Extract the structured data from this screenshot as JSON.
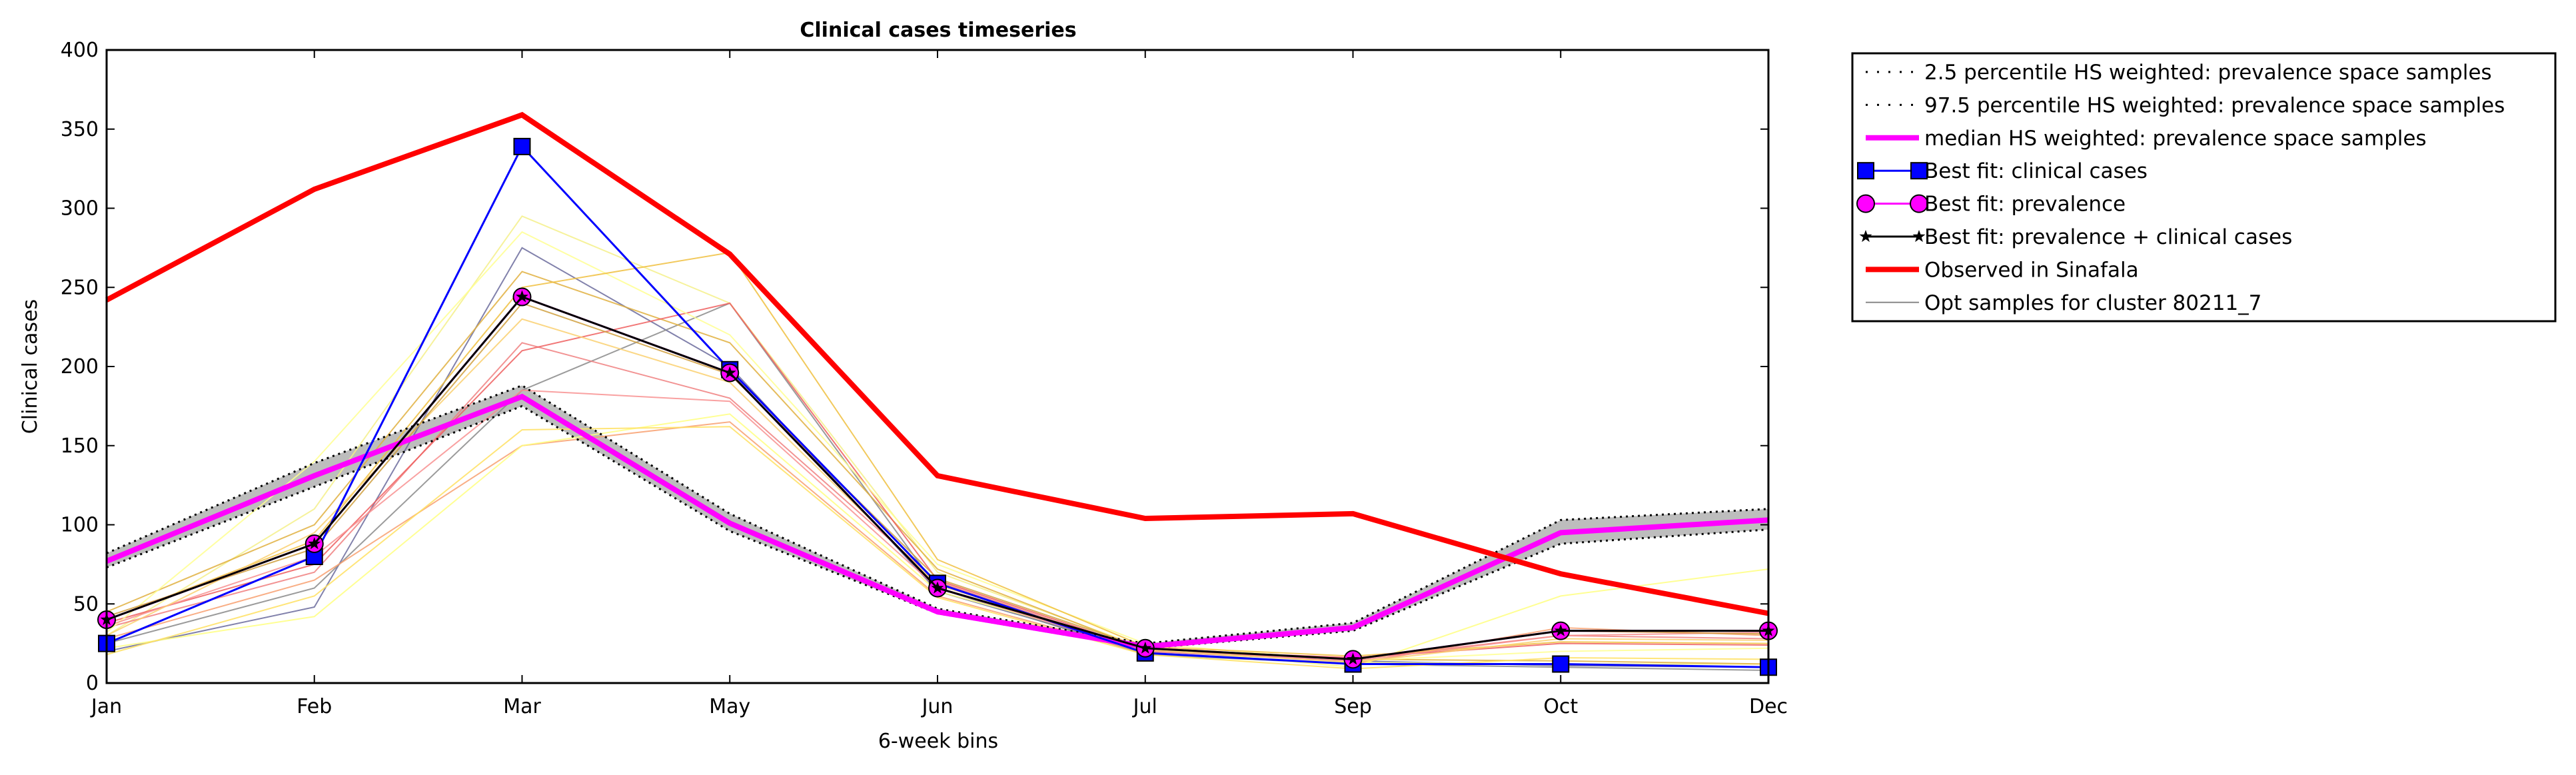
{
  "chart_data": {
    "type": "line",
    "title": "Clinical cases timeseries",
    "xlabel": "6-week bins",
    "ylabel": "Clinical cases",
    "categories": [
      "Jan",
      "Feb",
      "Mar",
      "May",
      "Jun",
      "Jul",
      "Sep",
      "Oct",
      "Dec"
    ],
    "ylim": [
      0,
      400
    ],
    "yticks": [
      0,
      50,
      100,
      150,
      200,
      250,
      300,
      350,
      400
    ],
    "legend_position": "outside-top-right",
    "band": {
      "lower": [
        73,
        124,
        175,
        96,
        44,
        22,
        33,
        88,
        97
      ],
      "upper": [
        82,
        139,
        188,
        107,
        47,
        25,
        38,
        103,
        110
      ],
      "fill": "#bdbdbd"
    },
    "opt_samples": [
      {
        "values": [
          20,
          48,
          275,
          200,
          58,
          20,
          14,
          11,
          10
        ],
        "color": "#6b6b9c"
      },
      {
        "values": [
          25,
          60,
          185,
          240,
          60,
          18,
          12,
          10,
          8
        ],
        "color": "#8a8a8a"
      },
      {
        "values": [
          30,
          110,
          295,
          240,
          70,
          22,
          13,
          12,
          12
        ],
        "color": "#f5f08a"
      },
      {
        "values": [
          45,
          100,
          260,
          215,
          72,
          21,
          15,
          14,
          12
        ],
        "color": "#e0b040"
      },
      {
        "values": [
          35,
          70,
          215,
          180,
          64,
          20,
          15,
          30,
          28
        ],
        "color": "#f08080"
      },
      {
        "values": [
          38,
          75,
          210,
          240,
          65,
          21,
          16,
          25,
          24
        ],
        "color": "#ef5f5f"
      },
      {
        "values": [
          28,
          65,
          150,
          165,
          55,
          19,
          12,
          35,
          30
        ],
        "color": "#f8a070"
      },
      {
        "values": [
          22,
          42,
          150,
          170,
          58,
          22,
          10,
          55,
          72
        ],
        "color": "#ffff80"
      },
      {
        "values": [
          32,
          140,
          285,
          220,
          75,
          25,
          14,
          20,
          22
        ],
        "color": "#ffff90"
      },
      {
        "values": [
          40,
          90,
          250,
          272,
          78,
          23,
          17,
          26,
          25
        ],
        "color": "#f0c040"
      },
      {
        "values": [
          36,
          80,
          185,
          178,
          60,
          20,
          14,
          30,
          32
        ],
        "color": "#f89090"
      },
      {
        "values": [
          30,
          95,
          230,
          190,
          62,
          21,
          13,
          28,
          27
        ],
        "color": "#fad070"
      },
      {
        "values": [
          18,
          55,
          160,
          162,
          54,
          18,
          9,
          16,
          15
        ],
        "color": "#ffe060"
      },
      {
        "values": [
          42,
          85,
          240,
          195,
          66,
          22,
          15,
          33,
          31
        ],
        "color": "#d0a040"
      }
    ],
    "series": [
      {
        "name": "2.5 percentile HS weighted: prevalence space samples",
        "values": [
          73,
          124,
          175,
          96,
          44,
          22,
          33,
          88,
          97
        ],
        "color": "#000000",
        "style": "dotted"
      },
      {
        "name": "97.5 percentile HS weighted: prevalence space samples",
        "values": [
          82,
          139,
          188,
          107,
          47,
          25,
          38,
          103,
          110
        ],
        "color": "#000000",
        "style": "dotted"
      },
      {
        "name": "median HS weighted: prevalence space samples",
        "values": [
          77,
          131,
          181,
          101,
          45,
          23,
          35,
          95,
          103
        ],
        "color": "#ff00ff",
        "style": "solid"
      },
      {
        "name": "Best fit: clinical cases",
        "values": [
          25,
          80,
          339,
          198,
          63,
          19,
          12,
          12,
          10
        ],
        "color": "#0000ff",
        "marker": "square"
      },
      {
        "name": "Best fit: prevalence",
        "values": [
          40,
          88,
          244,
          196,
          60,
          22,
          15,
          33,
          33
        ],
        "color": "#ff00ff",
        "marker": "circle"
      },
      {
        "name": "Best fit: prevalence + clinical cases",
        "values": [
          40,
          88,
          244,
          196,
          60,
          22,
          15,
          33,
          33
        ],
        "color": "#000000",
        "marker": "star"
      },
      {
        "name": "Observed in Sinafala",
        "values": [
          242,
          312,
          359,
          271,
          131,
          104,
          107,
          69,
          44
        ],
        "color": "#ff0000",
        "style": "solid"
      },
      {
        "name": "Opt samples for cluster 80211_7",
        "color": "#888888",
        "style": "solid"
      }
    ]
  }
}
